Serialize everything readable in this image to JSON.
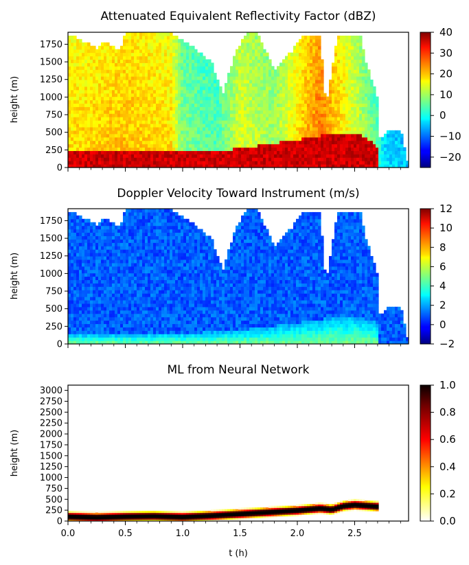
{
  "figure": {
    "x_axis": {
      "label": "t (h)",
      "ticks": [
        "0.0",
        "0.5",
        "1.0",
        "1.5",
        "2.0",
        "2.5"
      ],
      "range": [
        0,
        2.97
      ]
    }
  },
  "chart_data": [
    {
      "type": "heatmap",
      "title": "Attenuated Equivalent Reflectivity Factor (dBZ)",
      "ylabel": "height (m)",
      "xlabel": "",
      "xlim": [
        0,
        2.97
      ],
      "ylim": [
        0,
        1920
      ],
      "yticks": [
        "0",
        "250",
        "500",
        "750",
        "1000",
        "1250",
        "1500",
        "1750"
      ],
      "colormap": "jet",
      "clim": [
        -25,
        40
      ],
      "colorbar_ticks": [
        "40",
        "30",
        "20",
        "10",
        "0",
        "−10",
        "−20"
      ],
      "colorbar_tick_values": [
        40,
        30,
        20,
        10,
        0,
        -10,
        -20
      ],
      "echo_top_profile": {
        "t": [
          0,
          0.25,
          0.3,
          0.45,
          0.5,
          0.9,
          1.0,
          1.1,
          1.25,
          1.35,
          1.45,
          1.55,
          1.65,
          1.8,
          1.95,
          2.05,
          2.2,
          2.25,
          2.35,
          2.45,
          2.55,
          2.6,
          2.7,
          2.72,
          2.8,
          2.9,
          2.97
        ],
        "top_m": [
          1900,
          1700,
          1800,
          1650,
          1920,
          1920,
          1800,
          1700,
          1500,
          1050,
          1600,
          1900,
          1900,
          1400,
          1650,
          1900,
          1850,
          850,
          1900,
          1850,
          1900,
          1500,
          1000,
          400,
          550,
          550,
          0
        ]
      },
      "low_level_band": {
        "t": [
          0,
          1.0,
          1.5,
          2.0,
          2.3,
          2.5,
          2.6,
          2.7
        ],
        "top_m": [
          250,
          220,
          270,
          400,
          480,
          500,
          420,
          300
        ],
        "dbz": 35
      },
      "column_dbz": {
        "t": [
          0,
          0.5,
          0.9,
          1.0,
          1.3,
          1.5,
          1.8,
          2.0,
          2.2,
          2.5,
          2.7,
          2.75,
          2.97
        ],
        "value": [
          18,
          20,
          18,
          8,
          5,
          14,
          10,
          18,
          25,
          14,
          5,
          -2,
          -5
        ]
      }
    },
    {
      "type": "heatmap",
      "title": "Doppler Velocity Toward Instrument (m/s)",
      "ylabel": "height (m)",
      "xlabel": "",
      "xlim": [
        0,
        2.97
      ],
      "ylim": [
        0,
        1920
      ],
      "yticks": [
        "0",
        "250",
        "500",
        "750",
        "1000",
        "1250",
        "1500",
        "1750"
      ],
      "colormap": "jet",
      "clim": [
        -2,
        12
      ],
      "colorbar_ticks": [
        "12",
        "10",
        "8",
        "6",
        "4",
        "2",
        "0",
        "−2"
      ],
      "colorbar_tick_values": [
        12,
        10,
        8,
        6,
        4,
        2,
        0,
        -2
      ],
      "column_velocity_aloft": 1.0,
      "near_surface_band": {
        "t": [
          0,
          1.0,
          1.5,
          2.0,
          2.3,
          2.5,
          2.7
        ],
        "top_m": [
          150,
          150,
          200,
          300,
          380,
          400,
          300
        ],
        "velocity": 5
      }
    },
    {
      "type": "heatmap",
      "title": "ML from Neural Network",
      "ylabel": "height (m)",
      "xlabel": "t (h)",
      "xlim": [
        0,
        2.97
      ],
      "ylim": [
        0,
        3120
      ],
      "yticks": [
        "0",
        "250",
        "500",
        "750",
        "1000",
        "1250",
        "1500",
        "1750",
        "2000",
        "2250",
        "2500",
        "2750",
        "3000"
      ],
      "colormap": "hot_r",
      "clim": [
        0,
        1
      ],
      "colorbar_ticks": [
        "1.0",
        "0.8",
        "0.6",
        "0.4",
        "0.2",
        "0.0"
      ],
      "colorbar_tick_values": [
        1.0,
        0.8,
        0.6,
        0.4,
        0.2,
        0.0
      ],
      "melting_layer_center": {
        "t": [
          0,
          0.25,
          0.5,
          0.75,
          1.0,
          1.25,
          1.5,
          1.75,
          2.0,
          2.2,
          2.3,
          2.4,
          2.5,
          2.6,
          2.7
        ],
        "height_m": [
          110,
          90,
          110,
          120,
          100,
          130,
          170,
          210,
          250,
          300,
          270,
          350,
          380,
          360,
          340
        ]
      }
    }
  ]
}
